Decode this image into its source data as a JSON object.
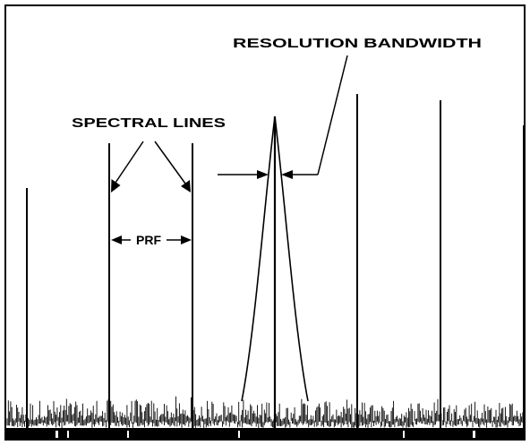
{
  "labels": {
    "resolution_bandwidth": "RESOLUTION BANDWIDTH",
    "spectral_lines": "SPECTRAL LINES",
    "prf": "PRF"
  },
  "colors": {
    "ink": "#000000",
    "background": "#ffffff"
  }
}
